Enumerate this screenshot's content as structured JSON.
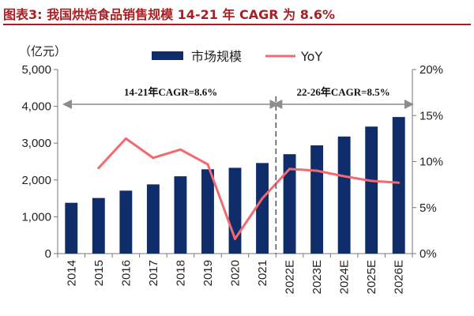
{
  "title": "图表3:  我国烘焙食品销售规模 14-21 年 CAGR 为 8.6%",
  "unit_label": "（亿元）",
  "colors": {
    "bar": "#0f2d6b",
    "line": "#f26a6e",
    "title": "#a81f24",
    "dashed_divider": "#555555",
    "arrow": "#8c8c8c"
  },
  "chart_data": {
    "type": "bar+line",
    "categories": [
      "2014",
      "2015",
      "2016",
      "2017",
      "2018",
      "2019",
      "2020",
      "2021",
      "2022E",
      "2023E",
      "2024E",
      "2025E",
      "2026E"
    ],
    "series": [
      {
        "name": "市场规模",
        "type": "bar",
        "axis": "left",
        "values": [
          1380,
          1510,
          1710,
          1880,
          2100,
          2290,
          2330,
          2460,
          2700,
          2940,
          3180,
          3450,
          3710
        ]
      },
      {
        "name": "YoY",
        "type": "line",
        "axis": "right",
        "values": [
          null,
          9.3,
          12.5,
          10.4,
          11.3,
          9.7,
          1.6,
          6.0,
          9.2,
          9.0,
          8.4,
          7.9,
          7.7
        ]
      }
    ],
    "y_left": {
      "min": 0,
      "max": 5000,
      "ticks": [
        "0",
        "1,000",
        "2,000",
        "3,000",
        "4,000",
        "5,000"
      ],
      "tick_values": [
        0,
        1000,
        2000,
        3000,
        4000,
        5000
      ]
    },
    "y_right": {
      "min": 0,
      "max": 20,
      "ticks": [
        "0%",
        "5%",
        "10%",
        "15%",
        "20%"
      ],
      "tick_values": [
        0,
        5,
        10,
        15,
        20
      ]
    },
    "annotations": [
      {
        "text": "14-21年CAGR=8.6%",
        "from": "2014",
        "to": "2021"
      },
      {
        "text": "22-26年CAGR=8.5%",
        "from": "2022E",
        "to": "2026E"
      }
    ],
    "legend_position": "top",
    "grid": false
  }
}
